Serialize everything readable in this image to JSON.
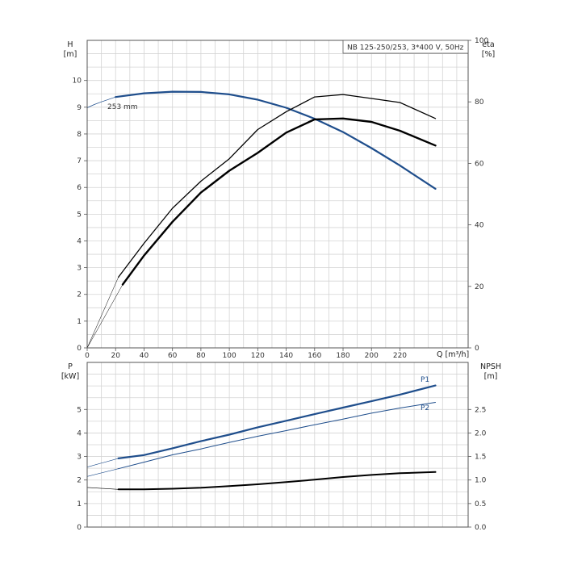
{
  "window": {
    "title": "NB 125-250/253, 3*400 V, 50Hz"
  },
  "chart_data": [
    {
      "type": "line",
      "panel": "head-efficiency",
      "title": "NB 125-250/253, 3*400 V, 50Hz",
      "xlabel": "Q [m³/h]",
      "ylabel_left": [
        "H",
        "[m]"
      ],
      "ylabel_right": [
        "eta",
        "[%]"
      ],
      "xlim": [
        0,
        268
      ],
      "ylim_left": [
        0,
        11.5
      ],
      "ylim_right": [
        0,
        100
      ],
      "x_ticks": [
        "0",
        "20",
        "40",
        "60",
        "80",
        "100",
        "120",
        "140",
        "160",
        "180",
        "200",
        "220"
      ],
      "y_ticks_left": [
        "0",
        "1",
        "2",
        "3",
        "4",
        "5",
        "6",
        "7",
        "8",
        "9",
        "10"
      ],
      "y_ticks_right": [
        "0",
        "20",
        "40",
        "60",
        "80",
        "100"
      ],
      "grid": true,
      "annotations": [
        {
          "text": "253 mm",
          "x": 15,
          "y": 9.35
        }
      ],
      "series": [
        {
          "axis": "left",
          "color": "#1f4e8c",
          "width": 2.2,
          "x": [
            20,
            40,
            60,
            80,
            100,
            120,
            140,
            160,
            180,
            200,
            220,
            245
          ],
          "y": [
            9.38,
            9.52,
            9.58,
            9.57,
            9.48,
            9.28,
            8.98,
            8.57,
            8.07,
            7.47,
            6.82,
            5.95
          ]
        },
        {
          "axis": "left",
          "color": "#1f4e8c",
          "width": 0.7,
          "x": [
            0,
            5,
            10,
            15,
            20
          ],
          "y": [
            8.98,
            9.1,
            9.2,
            9.29,
            9.38
          ]
        },
        {
          "axis": "right",
          "color": "#000000",
          "width": 1.3,
          "x": [
            22,
            40,
            60,
            80,
            100,
            120,
            140,
            160,
            180,
            200,
            220,
            245
          ],
          "y": [
            23,
            34,
            45.4,
            54.2,
            61.5,
            71,
            76.8,
            81.6,
            82.4,
            81.1,
            79.8,
            74.6
          ]
        },
        {
          "axis": "right",
          "color": "#000000",
          "width": 0.5,
          "x": [
            0,
            22
          ],
          "y": [
            0,
            23
          ]
        },
        {
          "axis": "right",
          "color": "#000000",
          "width": 2.4,
          "x": [
            25,
            40,
            60,
            80,
            100,
            120,
            140,
            160,
            180,
            200,
            220,
            245
          ],
          "y": [
            20.6,
            30,
            41,
            50.5,
            57.6,
            63.4,
            70,
            74.3,
            74.6,
            73.5,
            70.6,
            65.8
          ]
        },
        {
          "axis": "right",
          "color": "#000000",
          "width": 0.5,
          "x": [
            0,
            25
          ],
          "y": [
            0,
            20.6
          ]
        }
      ]
    },
    {
      "type": "line",
      "panel": "power-npsh",
      "ylabel_left": [
        "P",
        "[kW]"
      ],
      "ylabel_right": [
        "NPSH",
        "[m]"
      ],
      "xlim": [
        0,
        268
      ],
      "ylim_left": [
        0,
        7
      ],
      "ylim_right": [
        0,
        3.5
      ],
      "y_ticks_left": [
        "0",
        "1",
        "2",
        "3",
        "4",
        "5"
      ],
      "y_ticks_right": [
        "0.0",
        "0.5",
        "1.0",
        "1.5",
        "2.0",
        "2.5"
      ],
      "grid": true,
      "series": [
        {
          "name": "P1",
          "axis": "left",
          "color": "#1f4e8c",
          "width": 2.2,
          "x": [
            22,
            40,
            60,
            80,
            100,
            120,
            140,
            160,
            180,
            200,
            220,
            245
          ],
          "y": [
            2.92,
            3.06,
            3.35,
            3.65,
            3.93,
            4.24,
            4.52,
            4.8,
            5.08,
            5.35,
            5.63,
            6.02
          ]
        },
        {
          "name": "",
          "axis": "left",
          "color": "#1f4e8c",
          "width": 0.6,
          "x": [
            0,
            22
          ],
          "y": [
            2.55,
            2.92
          ]
        },
        {
          "name": "P2",
          "axis": "left",
          "color": "#1f4e8c",
          "width": 1.0,
          "x": [
            22,
            40,
            60,
            80,
            100,
            120,
            140,
            160,
            180,
            200,
            220,
            245
          ],
          "y": [
            2.48,
            2.76,
            3.07,
            3.32,
            3.6,
            3.86,
            4.1,
            4.35,
            4.59,
            4.84,
            5.06,
            5.3
          ]
        },
        {
          "name": "",
          "axis": "left",
          "color": "#1f4e8c",
          "width": 0.6,
          "x": [
            0,
            22
          ],
          "y": [
            2.15,
            2.48
          ]
        },
        {
          "name": "",
          "axis": "right",
          "color": "#000000",
          "width": 2.0,
          "x": [
            22,
            40,
            60,
            80,
            100,
            120,
            140,
            160,
            180,
            200,
            220,
            245
          ],
          "y": [
            0.802,
            0.802,
            0.815,
            0.835,
            0.869,
            0.91,
            0.955,
            1.007,
            1.064,
            1.108,
            1.145,
            1.17
          ]
        },
        {
          "name": "",
          "axis": "right",
          "color": "#000000",
          "width": 0.6,
          "x": [
            0,
            22
          ],
          "y": [
            0.842,
            0.802
          ]
        }
      ]
    }
  ]
}
